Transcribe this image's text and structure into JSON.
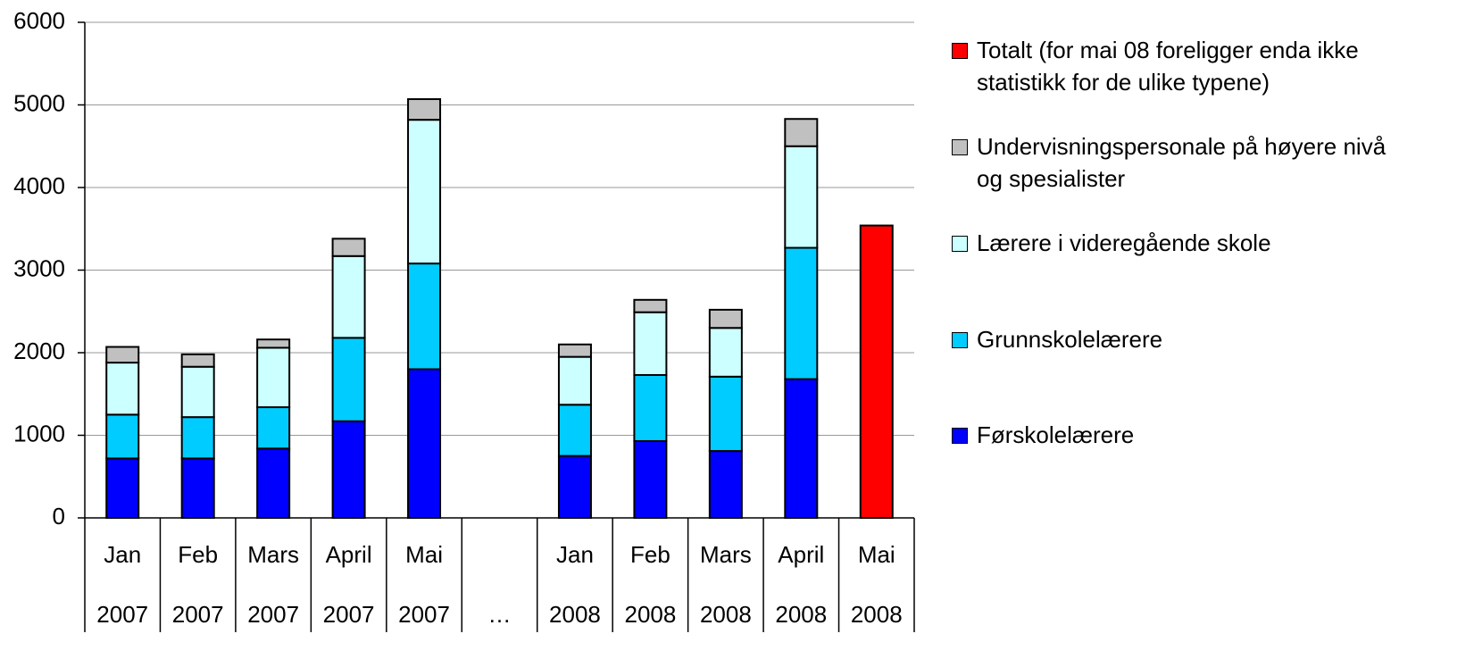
{
  "chart_data": {
    "type": "stacked-bar",
    "categories": [
      [
        "Jan",
        "2007"
      ],
      [
        "Feb",
        "2007"
      ],
      [
        "Mars",
        "2007"
      ],
      [
        "April",
        "2007"
      ],
      [
        "Mai",
        "2007"
      ],
      [
        null,
        "…"
      ],
      [
        "Jan",
        "2008"
      ],
      [
        "Feb",
        "2008"
      ],
      [
        "Mars",
        "2008"
      ],
      [
        "April",
        "2008"
      ],
      [
        "Mai",
        "2008"
      ]
    ],
    "series": [
      {
        "name": "Førskolelærere",
        "color": "#0000ff",
        "values": [
          720,
          720,
          840,
          1170,
          1800,
          null,
          750,
          930,
          810,
          1680,
          null
        ]
      },
      {
        "name": "Grunnskolelærere",
        "color": "#00ccff",
        "values": [
          530,
          500,
          500,
          1010,
          1280,
          null,
          620,
          800,
          900,
          1590,
          null
        ]
      },
      {
        "name": "Lærere i videregående skole",
        "color": "#ccffff",
        "values": [
          630,
          610,
          720,
          990,
          1740,
          null,
          580,
          760,
          590,
          1230,
          null
        ]
      },
      {
        "name": "Undervisningspersonale på høyere nivå og spesialister",
        "color": "#c0c0c0",
        "values": [
          190,
          150,
          100,
          210,
          250,
          null,
          150,
          150,
          220,
          330,
          null
        ]
      },
      {
        "name": "Totalt (for mai 08 foreligger enda ikke statistikk for de ulike typene)",
        "color": "#ff0000",
        "values": [
          null,
          null,
          null,
          null,
          null,
          null,
          null,
          null,
          null,
          null,
          3540
        ]
      }
    ],
    "ylim": [
      0,
      6000
    ],
    "yticks": [
      0,
      1000,
      2000,
      3000,
      4000,
      5000,
      6000
    ],
    "grid": true,
    "legend": "right"
  }
}
